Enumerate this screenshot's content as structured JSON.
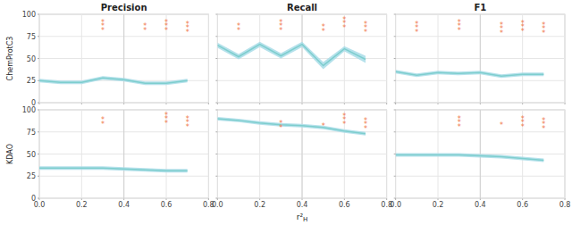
{
  "chart_data": [
    {
      "type": "line",
      "title": "Precision",
      "ylabel": "ChemProtC3",
      "tick_labels": "y",
      "grid": true,
      "x": [
        0.0,
        0.1,
        0.2,
        0.3,
        0.4,
        0.5,
        0.6,
        0.7
      ],
      "series": [
        {
          "type": "band",
          "color": "#a8dce8",
          "lower": [
            23,
            21,
            21,
            26,
            24,
            20,
            20,
            23
          ],
          "upper": [
            27,
            25,
            25,
            30,
            28,
            24,
            24,
            27
          ]
        },
        {
          "type": "line",
          "color": "#7ecece",
          "values": [
            25,
            23,
            23,
            28,
            26,
            22,
            22,
            25
          ]
        }
      ],
      "reference_lines": [
        {
          "x": 0.4,
          "color": "#d0d0d0"
        }
      ],
      "annotations": [
        {
          "x": 0.3,
          "y": 88,
          "text": "***",
          "color": "#f07850"
        },
        {
          "x": 0.5,
          "y": 86,
          "text": "**",
          "color": "#f07850"
        },
        {
          "x": 0.6,
          "y": 88,
          "text": "***",
          "color": "#f07850"
        },
        {
          "x": 0.7,
          "y": 86,
          "text": "***",
          "color": "#f07850"
        }
      ],
      "xlim": [
        0,
        0.8
      ],
      "xticks": [
        {
          "value": 0.0,
          "label": "0.0"
        },
        0.2,
        0.4,
        0.6,
        0.8
      ],
      "ylim": [
        0,
        100
      ],
      "yticks": [
        0,
        25,
        50,
        75,
        100
      ]
    },
    {
      "type": "line",
      "title": "Recall",
      "tick_labels": false,
      "grid": true,
      "x": [
        0.0,
        0.1,
        0.2,
        0.3,
        0.4,
        0.5,
        0.6,
        0.7
      ],
      "series": [
        {
          "type": "band",
          "color": "#a8dce8",
          "lower": [
            62,
            49,
            63,
            50,
            63,
            38,
            58,
            45
          ],
          "upper": [
            68,
            55,
            69,
            56,
            69,
            46,
            64,
            53
          ]
        },
        {
          "type": "line",
          "color": "#7ecece",
          "values": [
            65,
            52,
            66,
            53,
            66,
            42,
            61,
            49
          ]
        }
      ],
      "reference_lines": [
        {
          "x": 0.4,
          "color": "#d0d0d0"
        }
      ],
      "annotations": [
        {
          "x": 0.1,
          "y": 86,
          "text": "**",
          "color": "#f07850"
        },
        {
          "x": 0.3,
          "y": 88,
          "text": "***",
          "color": "#f07850"
        },
        {
          "x": 0.5,
          "y": 85,
          "text": "**",
          "color": "#f07850"
        },
        {
          "x": 0.6,
          "y": 91,
          "text": "***",
          "color": "#f07850"
        },
        {
          "x": 0.7,
          "y": 86,
          "text": "***",
          "color": "#f07850"
        }
      ],
      "xlim": [
        0,
        0.8
      ],
      "xticks": [
        {
          "value": 0.0,
          "label": "0.0"
        },
        0.2,
        0.4,
        0.6,
        0.8
      ],
      "ylim": [
        0,
        100
      ],
      "yticks": [
        0,
        25,
        50,
        75,
        100
      ]
    },
    {
      "type": "line",
      "title": "F1",
      "tick_labels": false,
      "grid": true,
      "x": [
        0.0,
        0.1,
        0.2,
        0.3,
        0.4,
        0.5,
        0.6,
        0.7
      ],
      "series": [
        {
          "type": "band",
          "color": "#a8dce8",
          "lower": [
            33,
            29,
            32,
            31,
            32,
            28,
            30,
            30
          ],
          "upper": [
            37,
            33,
            36,
            35,
            36,
            32,
            34,
            34
          ]
        },
        {
          "type": "line",
          "color": "#7ecece",
          "values": [
            35,
            31,
            34,
            33,
            34,
            30,
            32,
            32
          ]
        }
      ],
      "reference_lines": [
        {
          "x": 0.4,
          "color": "#d0d0d0"
        }
      ],
      "annotations": [
        {
          "x": 0.1,
          "y": 86,
          "text": "***",
          "color": "#f07850"
        },
        {
          "x": 0.3,
          "y": 88,
          "text": "***",
          "color": "#f07850"
        },
        {
          "x": 0.5,
          "y": 85,
          "text": "***",
          "color": "#f07850"
        },
        {
          "x": 0.6,
          "y": 87,
          "text": "***",
          "color": "#f07850"
        },
        {
          "x": 0.7,
          "y": 85,
          "text": "***",
          "color": "#f07850"
        }
      ],
      "xlim": [
        0,
        0.8
      ],
      "xticks": [
        {
          "value": 0.0,
          "label": "0.0"
        },
        0.2,
        0.4,
        0.6,
        0.8
      ],
      "ylim": [
        0,
        100
      ],
      "yticks": [
        0,
        25,
        50,
        75,
        100
      ]
    },
    {
      "type": "line",
      "ylabel": "KDAO",
      "grid": true,
      "x": [
        0.0,
        0.1,
        0.2,
        0.3,
        0.4,
        0.5,
        0.6,
        0.7
      ],
      "series": [
        {
          "type": "band",
          "color": "#a8dce8",
          "lower": [
            32,
            32,
            32,
            32,
            31,
            30,
            29,
            29
          ],
          "upper": [
            36,
            36,
            36,
            36,
            35,
            34,
            33,
            33
          ]
        },
        {
          "type": "line",
          "color": "#7ecece",
          "values": [
            34,
            34,
            34,
            34,
            33,
            32,
            31,
            31
          ]
        }
      ],
      "reference_lines": [
        {
          "x": 0.4,
          "color": "#d0d0d0"
        }
      ],
      "annotations": [
        {
          "x": 0.3,
          "y": 88,
          "text": "**",
          "color": "#f07850"
        },
        {
          "x": 0.6,
          "y": 91,
          "text": "***",
          "color": "#f07850"
        },
        {
          "x": 0.7,
          "y": 87,
          "text": "***",
          "color": "#f07850"
        }
      ],
      "xlim": [
        0,
        0.8
      ],
      "xticks": [
        {
          "value": 0.0,
          "label": "0.0"
        },
        0.2,
        0.4,
        0.6,
        0.8
      ],
      "ylim": [
        0,
        100
      ],
      "yticks": [
        0,
        25,
        50,
        75,
        100
      ]
    },
    {
      "type": "line",
      "xlabel": "r²H",
      "tick_labels": "x",
      "grid": true,
      "x": [
        0.0,
        0.1,
        0.2,
        0.3,
        0.4,
        0.5,
        0.6,
        0.7
      ],
      "series": [
        {
          "type": "band",
          "color": "#a8dce8",
          "lower": [
            88,
            86,
            83,
            81,
            80,
            78,
            74,
            71
          ],
          "upper": [
            92,
            90,
            87,
            85,
            84,
            82,
            78,
            75
          ]
        },
        {
          "type": "line",
          "color": "#7ecece",
          "values": [
            90,
            88,
            85,
            83,
            82,
            80,
            76,
            73
          ]
        }
      ],
      "reference_lines": [
        {
          "x": 0.4,
          "color": "#d0d0d0"
        }
      ],
      "annotations": [
        {
          "x": 0.3,
          "y": 84,
          "text": "**",
          "color": "#f07850"
        },
        {
          "x": 0.5,
          "y": 83,
          "text": "*",
          "color": "#f07850"
        },
        {
          "x": 0.6,
          "y": 90,
          "text": "***",
          "color": "#f07850"
        },
        {
          "x": 0.7,
          "y": 85,
          "text": "***",
          "color": "#f07850"
        }
      ],
      "xlim": [
        0,
        0.8
      ],
      "xticks": [
        {
          "value": 0.0,
          "label": "0.0"
        },
        0.2,
        0.4,
        0.6,
        0.8
      ],
      "ylim": [
        0,
        100
      ],
      "yticks": [
        0,
        25,
        50,
        75,
        100
      ]
    },
    {
      "type": "line",
      "tick_labels": "x",
      "grid": true,
      "x": [
        0.0,
        0.1,
        0.2,
        0.3,
        0.4,
        0.5,
        0.6,
        0.7
      ],
      "series": [
        {
          "type": "band",
          "color": "#a8dce8",
          "lower": [
            47,
            47,
            47,
            47,
            46,
            45,
            43,
            41
          ],
          "upper": [
            51,
            51,
            51,
            51,
            50,
            49,
            47,
            45
          ]
        },
        {
          "type": "line",
          "color": "#7ecece",
          "values": [
            49,
            49,
            49,
            49,
            48,
            47,
            45,
            43
          ]
        }
      ],
      "reference_lines": [
        {
          "x": 0.4,
          "color": "#d0d0d0"
        }
      ],
      "annotations": [
        {
          "x": 0.3,
          "y": 87,
          "text": "***",
          "color": "#f07850"
        },
        {
          "x": 0.5,
          "y": 84,
          "text": "*",
          "color": "#f07850"
        },
        {
          "x": 0.6,
          "y": 87,
          "text": "***",
          "color": "#f07850"
        },
        {
          "x": 0.7,
          "y": 85,
          "text": "***",
          "color": "#f07850"
        }
      ],
      "xlim": [
        0,
        0.8
      ],
      "xticks": [
        {
          "value": 0.0,
          "label": "0.0"
        },
        0.2,
        0.4,
        0.6,
        0.8
      ],
      "ylim": [
        0,
        100
      ],
      "yticks": [
        0,
        25,
        50,
        75,
        100
      ]
    }
  ]
}
